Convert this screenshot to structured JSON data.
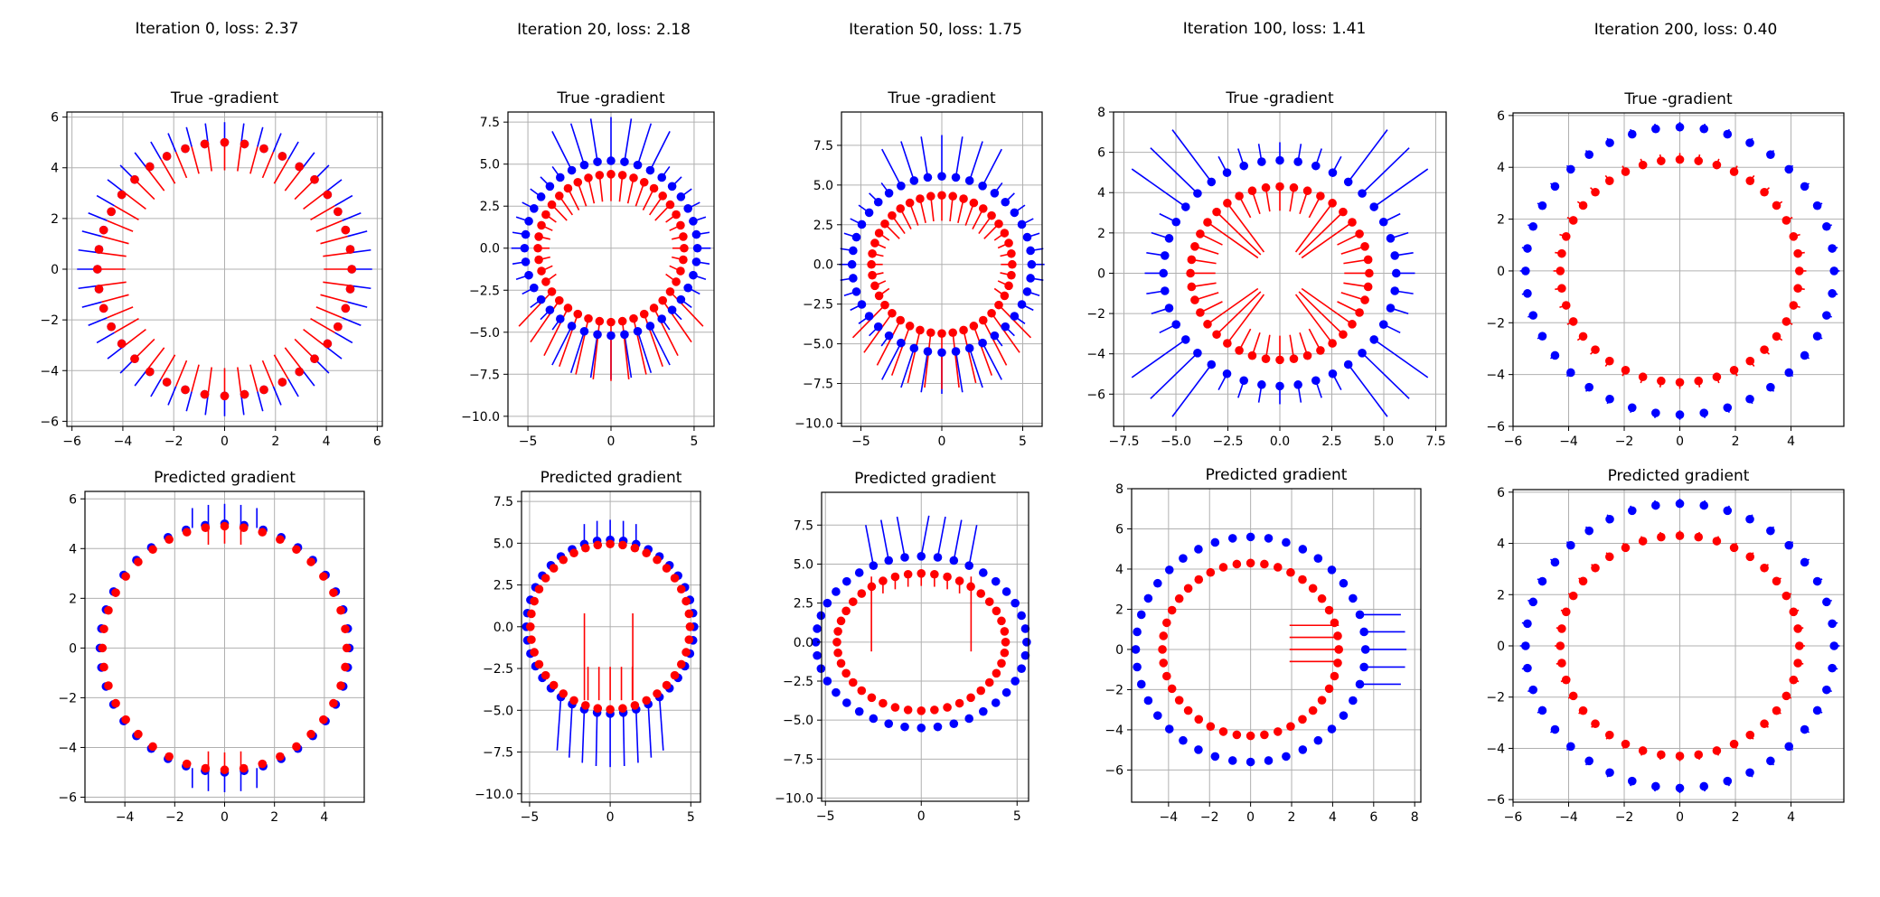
{
  "colors": {
    "outer": "#0000ff",
    "inner": "#ff0000",
    "grid": "#b0b0b0",
    "axes": "#000000"
  },
  "columns": [
    {
      "title": "Iteration 0, loss: 2.37"
    },
    {
      "title": "Iteration 20, loss: 2.18"
    },
    {
      "title": "Iteration 50, loss: 1.75"
    },
    {
      "title": "Iteration 100, loss: 1.41"
    },
    {
      "title": "Iteration 200, loss: 0.40"
    }
  ],
  "chart_data": [
    {
      "type": "scatter",
      "title": "True -gradient",
      "xlim": [
        -6.2,
        6.2
      ],
      "ylim": [
        -6.2,
        6.2
      ],
      "xticks": [
        -6,
        -4,
        -2,
        0,
        2,
        4,
        6
      ],
      "yticks": [
        -6,
        -4,
        -2,
        0,
        2,
        4,
        6
      ],
      "tick_labels_x": [
        "−6",
        "−4",
        "−2",
        "0",
        "2",
        "4",
        "6"
      ],
      "tick_labels_y": [
        "−6",
        "−4",
        "−2",
        "0",
        "2",
        "4",
        "6"
      ],
      "grid": true,
      "outer": {
        "cx": 0,
        "cy": 0,
        "r": 5.0
      },
      "inner": {
        "cx": 0,
        "cy": 0,
        "r": 5.0
      },
      "arrows": "true_initial"
    },
    {
      "type": "scatter",
      "title": "True -gradient",
      "xlim": [
        -6.2,
        6.2
      ],
      "ylim": [
        -10.6,
        8.1
      ],
      "xticks": [
        -5,
        0,
        5
      ],
      "yticks": [
        -10,
        -7.5,
        -5,
        -2.5,
        0,
        2.5,
        5,
        7.5
      ],
      "tick_labels_x": [
        "−5",
        "0",
        "5"
      ],
      "tick_labels_y": [
        "−10.0",
        "−7.5",
        "−5.0",
        "−2.5",
        "0.0",
        "2.5",
        "5.0",
        "7.5"
      ],
      "grid": true,
      "outer": {
        "cx": 0,
        "cy": 0,
        "r": 5.2
      },
      "inner": {
        "cx": 0,
        "cy": 0,
        "r": 4.4
      },
      "arrows": "true_mid"
    },
    {
      "type": "scatter",
      "title": "True -gradient",
      "xlim": [
        -6.2,
        6.2
      ],
      "ylim": [
        -10.2,
        9.6
      ],
      "xticks": [
        -5,
        0,
        5
      ],
      "yticks": [
        -10,
        -7.5,
        -5,
        -2.5,
        0,
        2.5,
        5,
        7.5
      ],
      "tick_labels_x": [
        "−5",
        "0",
        "5"
      ],
      "tick_labels_y": [
        "−10.0",
        "−7.5",
        "−5.0",
        "−2.5",
        "0.0",
        "2.5",
        "5.0",
        "7.5"
      ],
      "grid": true,
      "outer": {
        "cx": 0,
        "cy": 0,
        "r": 5.55
      },
      "inner": {
        "cx": 0,
        "cy": 0,
        "r": 4.35
      },
      "arrows": "true_mid"
    },
    {
      "type": "scatter",
      "title": "True -gradient",
      "xlim": [
        -8.0,
        8.0
      ],
      "ylim": [
        -7.6,
        8.0
      ],
      "xticks": [
        -7.5,
        -5,
        -2.5,
        0,
        2.5,
        5,
        7.5
      ],
      "yticks": [
        -6,
        -4,
        -2,
        0,
        2,
        4,
        6,
        8
      ],
      "tick_labels_x": [
        "−7.5",
        "−5.0",
        "−2.5",
        "0.0",
        "2.5",
        "5.0",
        "7.5"
      ],
      "tick_labels_y": [
        "−6",
        "−4",
        "−2",
        "0",
        "2",
        "4",
        "6",
        "8"
      ],
      "grid": true,
      "outer": {
        "cx": 0,
        "cy": 0,
        "r": 5.6
      },
      "inner": {
        "cx": 0,
        "cy": 0,
        "r": 4.3
      },
      "arrows": "true_late"
    },
    {
      "type": "scatter",
      "title": "True -gradient",
      "xlim": [
        -6.0,
        5.9
      ],
      "ylim": [
        -6.0,
        6.1
      ],
      "xticks": [
        -6,
        -4,
        -2,
        0,
        2,
        4
      ],
      "yticks": [
        -6,
        -4,
        -2,
        0,
        2,
        4,
        6
      ],
      "tick_labels_x": [
        "−6",
        "−4",
        "−2",
        "0",
        "2",
        "4"
      ],
      "tick_labels_y": [
        "−6",
        "−4",
        "−2",
        "0",
        "2",
        "4",
        "6"
      ],
      "grid": true,
      "outer": {
        "cx": 0,
        "cy": 0,
        "r": 5.55
      },
      "inner": {
        "cx": 0,
        "cy": 0,
        "r": 4.3
      },
      "arrows": "true_final"
    },
    {
      "type": "scatter",
      "title": "Predicted gradient",
      "xlim": [
        -5.6,
        5.6
      ],
      "ylim": [
        -6.2,
        6.3
      ],
      "xticks": [
        -4,
        -2,
        0,
        2,
        4
      ],
      "yticks": [
        -6,
        -4,
        -2,
        0,
        2,
        4,
        6
      ],
      "tick_labels_x": [
        "−4",
        "−2",
        "0",
        "2",
        "4"
      ],
      "tick_labels_y": [
        "−6",
        "−4",
        "−2",
        "0",
        "2",
        "4",
        "6"
      ],
      "grid": true,
      "outer": {
        "cx": 0,
        "cy": 0,
        "r": 5.0
      },
      "inner": {
        "cx": 0,
        "cy": 0,
        "r": 4.9
      },
      "arrows": "pred_initial"
    },
    {
      "type": "scatter",
      "title": "Predicted gradient",
      "xlim": [
        -5.5,
        5.6
      ],
      "ylim": [
        -10.5,
        8.1
      ],
      "xticks": [
        -5,
        0,
        5
      ],
      "yticks": [
        -10,
        -7.5,
        -5,
        -2.5,
        0,
        2.5,
        5,
        7.5
      ],
      "tick_labels_x": [
        "−5",
        "0",
        "5"
      ],
      "tick_labels_y": [
        "−10.0",
        "−7.5",
        "−5.0",
        "−2.5",
        "0.0",
        "2.5",
        "5.0",
        "7.5"
      ],
      "grid": true,
      "outer": {
        "cx": 0,
        "cy": 0,
        "r": 5.2
      },
      "inner": {
        "cx": 0,
        "cy": 0,
        "r": 4.95
      },
      "arrows": "pred_mid"
    },
    {
      "type": "scatter",
      "title": "Predicted gradient",
      "xlim": [
        -5.2,
        5.6
      ],
      "ylim": [
        -10.2,
        9.6
      ],
      "xticks": [
        -5,
        0,
        5
      ],
      "yticks": [
        -10,
        -7.5,
        -5,
        -2.5,
        0,
        2.5,
        5,
        7.5
      ],
      "tick_labels_x": [
        "−5",
        "0",
        "5"
      ],
      "tick_labels_y": [
        "−10.0",
        "−7.5",
        "−5.0",
        "−2.5",
        "0.0",
        "2.5",
        "5.0",
        "7.5"
      ],
      "grid": true,
      "outer": {
        "cx": 0,
        "cy": 0,
        "r": 5.5
      },
      "inner": {
        "cx": 0,
        "cy": 0,
        "r": 4.4
      },
      "arrows": "pred_50"
    },
    {
      "type": "scatter",
      "title": "Predicted gradient",
      "xlim": [
        -5.8,
        8.3
      ],
      "ylim": [
        -7.6,
        8.0
      ],
      "xticks": [
        -4,
        -2,
        0,
        2,
        4,
        6,
        8
      ],
      "yticks": [
        -6,
        -4,
        -2,
        0,
        2,
        4,
        6,
        8
      ],
      "tick_labels_x": [
        "−4",
        "−2",
        "0",
        "2",
        "4",
        "6",
        "8"
      ],
      "tick_labels_y": [
        "−6",
        "−4",
        "−2",
        "0",
        "2",
        "4",
        "6",
        "8"
      ],
      "grid": true,
      "outer": {
        "cx": 0,
        "cy": 0,
        "r": 5.6
      },
      "inner": {
        "cx": 0,
        "cy": 0,
        "r": 4.3
      },
      "arrows": "pred_100"
    },
    {
      "type": "scatter",
      "title": "Predicted gradient",
      "xlim": [
        -6.0,
        5.9
      ],
      "ylim": [
        -6.1,
        6.1
      ],
      "xticks": [
        -6,
        -4,
        -2,
        0,
        2,
        4
      ],
      "yticks": [
        -6,
        -4,
        -2,
        0,
        2,
        4,
        6
      ],
      "tick_labels_x": [
        "−6",
        "−4",
        "−2",
        "0",
        "2",
        "4"
      ],
      "tick_labels_y": [
        "−6",
        "−4",
        "−2",
        "0",
        "2",
        "4",
        "6"
      ],
      "grid": true,
      "outer": {
        "cx": 0,
        "cy": 0,
        "r": 5.55
      },
      "inner": {
        "cx": 0,
        "cy": 0,
        "r": 4.3
      },
      "arrows": "pred_final"
    }
  ]
}
